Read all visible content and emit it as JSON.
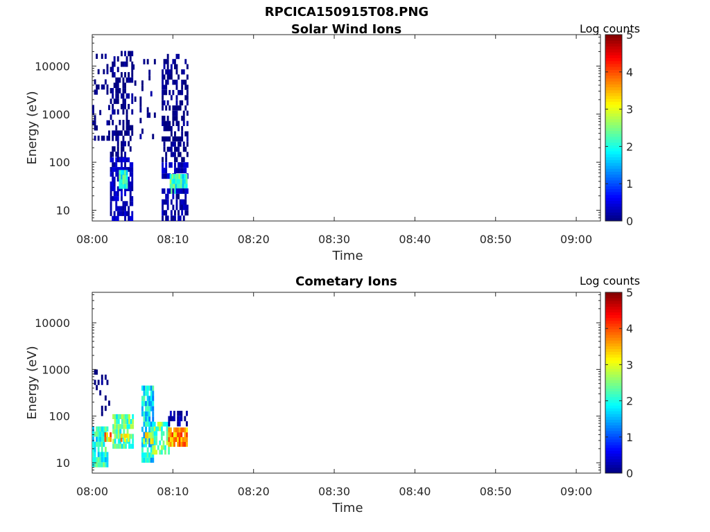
{
  "figure": {
    "title": "RPCICA150915T08.PNG"
  },
  "chart_data": [
    {
      "type": "heatmap",
      "title": "Solar Wind Ions",
      "xlabel": "Time",
      "ylabel": "Energy (eV)",
      "x_range": [
        "08:00",
        "09:03"
      ],
      "x_ticks": [
        "08:00",
        "08:10",
        "08:20",
        "08:30",
        "08:40",
        "08:50",
        "09:00"
      ],
      "y_scale": "log",
      "y_range": [
        6,
        45000
      ],
      "y_ticks": [
        "10",
        "100",
        "1000",
        "10000"
      ],
      "colorbar": {
        "title": "Log counts",
        "range": [
          0,
          5
        ],
        "ticks": [
          "0",
          "1",
          "2",
          "3",
          "4",
          "5"
        ],
        "colormap": "jet"
      },
      "grid": false,
      "bursts": [
        {
          "t_start_min": 0.0,
          "t_end_min": 2.2,
          "e_min_ev": 280,
          "e_max_ev": 18000,
          "log_counts": 0.0,
          "density": 0.16
        },
        {
          "t_start_min": 2.2,
          "t_end_min": 5.0,
          "e_min_ev": 100,
          "e_max_ev": 16000,
          "log_counts": 0.0,
          "density": 0.5
        },
        {
          "t_start_min": 2.2,
          "t_end_min": 5.0,
          "e_min_ev": 25,
          "e_max_ev": 100,
          "log_counts": 0.3,
          "density": 0.75
        },
        {
          "t_start_min": 3.3,
          "t_end_min": 4.4,
          "e_min_ev": 28,
          "e_max_ev": 55,
          "log_counts": 2.0,
          "density": 1.0
        },
        {
          "t_start_min": 2.2,
          "t_end_min": 5.0,
          "e_min_ev": 6,
          "e_max_ev": 25,
          "log_counts": 0.3,
          "density": 0.6
        },
        {
          "t_start_min": 5.0,
          "t_end_min": 7.7,
          "e_min_ev": 300,
          "e_max_ev": 14000,
          "log_counts": 0.0,
          "density": 0.1
        },
        {
          "t_start_min": 8.6,
          "t_end_min": 11.8,
          "e_min_ev": 100,
          "e_max_ev": 14000,
          "log_counts": 0.0,
          "density": 0.5
        },
        {
          "t_start_min": 8.6,
          "t_end_min": 11.8,
          "e_min_ev": 45,
          "e_max_ev": 100,
          "log_counts": 0.3,
          "density": 0.6
        },
        {
          "t_start_min": 9.6,
          "t_end_min": 11.8,
          "e_min_ev": 22,
          "e_max_ev": 45,
          "log_counts": 2.1,
          "density": 1.0
        },
        {
          "t_start_min": 8.6,
          "t_end_min": 11.8,
          "e_min_ev": 6,
          "e_max_ev": 22,
          "log_counts": 0.2,
          "density": 0.6
        }
      ]
    },
    {
      "type": "heatmap",
      "title": "Cometary Ions",
      "xlabel": "Time",
      "ylabel": "Energy (eV)",
      "x_range": [
        "08:00",
        "09:03"
      ],
      "x_ticks": [
        "08:00",
        "08:10",
        "08:20",
        "08:30",
        "08:40",
        "08:50",
        "09:00"
      ],
      "y_scale": "log",
      "y_range": [
        6,
        45000
      ],
      "y_ticks": [
        "10",
        "100",
        "1000",
        "10000"
      ],
      "colorbar": {
        "title": "Log counts",
        "range": [
          0,
          5
        ],
        "ticks": [
          "0",
          "1",
          "2",
          "3",
          "4",
          "5"
        ],
        "colormap": "jet"
      },
      "grid": false,
      "bursts": [
        {
          "t_start_min": 0.0,
          "t_end_min": 2.0,
          "e_min_ev": 100,
          "e_max_ev": 1000,
          "log_counts": 0.0,
          "density": 0.2
        },
        {
          "t_start_min": 0.0,
          "t_end_min": 1.8,
          "e_min_ev": 8,
          "e_max_ev": 60,
          "log_counts": 2.0,
          "density": 0.85
        },
        {
          "t_start_min": 1.5,
          "t_end_min": 2.3,
          "e_min_ev": 28,
          "e_max_ev": 45,
          "log_counts": 3.8,
          "density": 0.8
        },
        {
          "t_start_min": 2.5,
          "t_end_min": 5.0,
          "e_min_ev": 20,
          "e_max_ev": 110,
          "log_counts": 2.3,
          "density": 0.8
        },
        {
          "t_start_min": 3.5,
          "t_end_min": 4.5,
          "e_min_ev": 28,
          "e_max_ev": 42,
          "log_counts": 3.3,
          "density": 0.8
        },
        {
          "t_start_min": 6.1,
          "t_end_min": 7.5,
          "e_min_ev": 10,
          "e_max_ev": 350,
          "log_counts": 1.8,
          "density": 0.85
        },
        {
          "t_start_min": 6.3,
          "t_end_min": 7.4,
          "e_min_ev": 25,
          "e_max_ev": 45,
          "log_counts": 3.1,
          "density": 0.7
        },
        {
          "t_start_min": 7.4,
          "t_end_min": 9.4,
          "e_min_ev": 15,
          "e_max_ev": 60,
          "log_counts": 2.4,
          "density": 0.6
        },
        {
          "t_start_min": 9.4,
          "t_end_min": 11.8,
          "e_min_ev": 22,
          "e_max_ev": 45,
          "log_counts": 3.6,
          "density": 0.9
        },
        {
          "t_start_min": 9.4,
          "t_end_min": 11.8,
          "e_min_ev": 60,
          "e_max_ev": 130,
          "log_counts": 0.2,
          "density": 0.5
        }
      ]
    }
  ]
}
